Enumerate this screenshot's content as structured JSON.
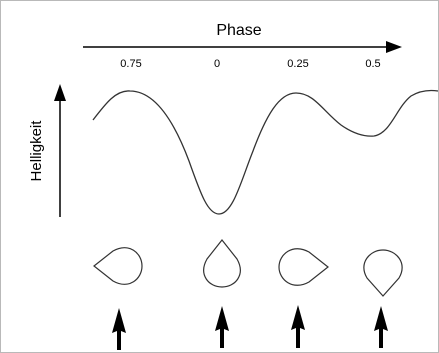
{
  "title": "Phase",
  "ylabel": "Helligkeit",
  "phase_ticks": [
    "0.75",
    "0",
    "0.25",
    "0.5"
  ],
  "colors": {
    "line": "#000000",
    "border": "#b9b9b9",
    "background": "#ffffff"
  },
  "stars": [
    {
      "name": "star-shape-phase-0.75",
      "shape": "teardrop-pointing-left"
    },
    {
      "name": "star-shape-phase-0",
      "shape": "teardrop-pointing-up"
    },
    {
      "name": "star-shape-phase-0.25",
      "shape": "teardrop-pointing-right"
    },
    {
      "name": "star-shape-phase-0.5",
      "shape": "teardrop-pointing-down"
    }
  ],
  "observer_arrows": [
    "up-arrow-icon",
    "up-arrow-icon",
    "up-arrow-icon",
    "up-arrow-icon"
  ]
}
